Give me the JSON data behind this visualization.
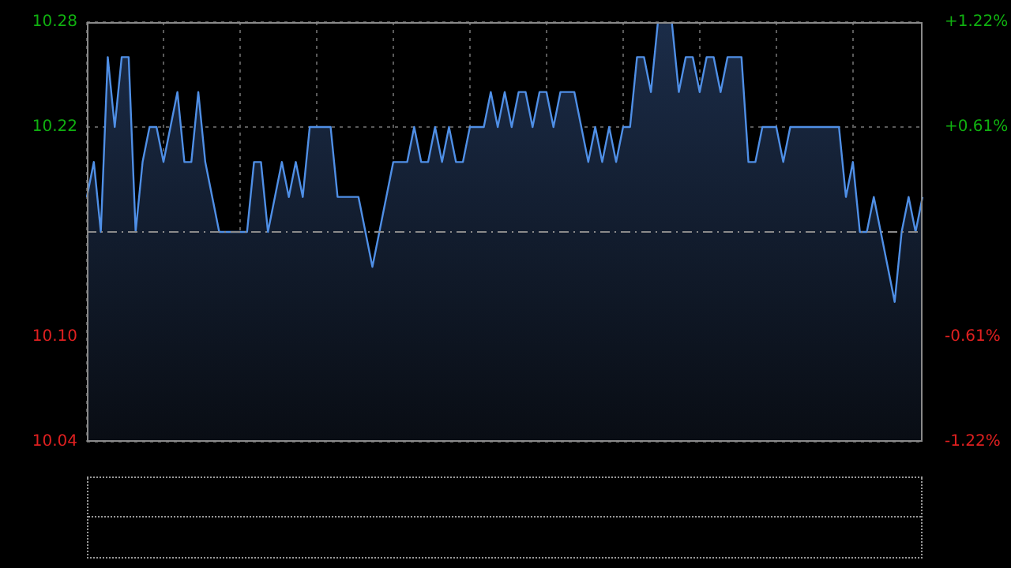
{
  "chart_data": {
    "type": "area",
    "color": "#4f8fe6",
    "categories": [
      null,
      null,
      null,
      null,
      null,
      null,
      null,
      null,
      null,
      null,
      null,
      null,
      null,
      null,
      null,
      null,
      null,
      null,
      null,
      null,
      null,
      null,
      null,
      null,
      null,
      null,
      null,
      null,
      null,
      null,
      null,
      null,
      null,
      null,
      null,
      null,
      null,
      null,
      null,
      null,
      null,
      null,
      null,
      null,
      null,
      null,
      null,
      null,
      null,
      null,
      null,
      null,
      null,
      null,
      null,
      null,
      null,
      null,
      null,
      null,
      null,
      null,
      null,
      null,
      null,
      null,
      null,
      null,
      null,
      null,
      null,
      null,
      null,
      null,
      null,
      null,
      null,
      null,
      null,
      null,
      null,
      null,
      null,
      null,
      null,
      null,
      null,
      null,
      null,
      null,
      null,
      null,
      null,
      null,
      null,
      null,
      null,
      null,
      null,
      null,
      null,
      null,
      null,
      null,
      null,
      null,
      null,
      null,
      null,
      null,
      null,
      null,
      null,
      null,
      null,
      null,
      null,
      null,
      null,
      null,
      null
    ],
    "values": [
      10.18,
      10.2,
      10.16,
      10.26,
      10.22,
      10.26,
      10.26,
      10.16,
      10.2,
      10.22,
      10.22,
      10.2,
      10.22,
      10.24,
      10.2,
      10.2,
      10.24,
      10.2,
      10.18,
      10.16,
      10.16,
      10.16,
      10.16,
      10.16,
      10.2,
      10.2,
      10.16,
      10.18,
      10.2,
      10.18,
      10.2,
      10.18,
      10.22,
      10.22,
      10.22,
      10.22,
      10.18,
      10.18,
      10.18,
      10.18,
      10.16,
      10.14,
      10.16,
      10.18,
      10.2,
      10.2,
      10.2,
      10.22,
      10.2,
      10.2,
      10.22,
      10.2,
      10.22,
      10.2,
      10.2,
      10.22,
      10.22,
      10.22,
      10.24,
      10.22,
      10.24,
      10.22,
      10.24,
      10.24,
      10.22,
      10.24,
      10.24,
      10.22,
      10.24,
      10.24,
      10.24,
      10.22,
      10.2,
      10.22,
      10.2,
      10.22,
      10.2,
      10.22,
      10.22,
      10.26,
      10.26,
      10.24,
      10.28,
      10.28,
      10.28,
      10.24,
      10.26,
      10.26,
      10.24,
      10.26,
      10.26,
      10.24,
      10.26,
      10.26,
      10.26,
      10.2,
      10.2,
      10.22,
      10.22,
      10.22,
      10.2,
      10.22,
      10.22,
      10.22,
      10.22,
      10.22,
      10.22,
      10.22,
      10.22,
      10.18,
      10.2,
      10.16,
      10.16,
      10.18,
      10.16,
      10.14,
      10.12,
      10.16,
      10.18,
      10.16,
      10.18
    ],
    "ylim": [
      10.04,
      10.28
    ],
    "yticks": [
      10.04,
      {
        "value": 10.1,
        "label": "10.10"
      },
      10.22,
      10.28
    ],
    "y2lim": [
      -1.22,
      1.22
    ],
    "y2ticks": [
      {
        "value": -1.22,
        "label": "-1.22%"
      },
      {
        "value": -0.61,
        "label": "-0.61%"
      },
      {
        "value": 0.61,
        "label": "+0.61%"
      },
      {
        "value": 1.22,
        "label": "+1.22%"
      }
    ],
    "ref_lines": [
      {
        "axis": "y",
        "value": 10.16,
        "color": "#8a8a8a",
        "line_style": "dashed"
      }
    ],
    "grid": true,
    "legend": false
  }
}
